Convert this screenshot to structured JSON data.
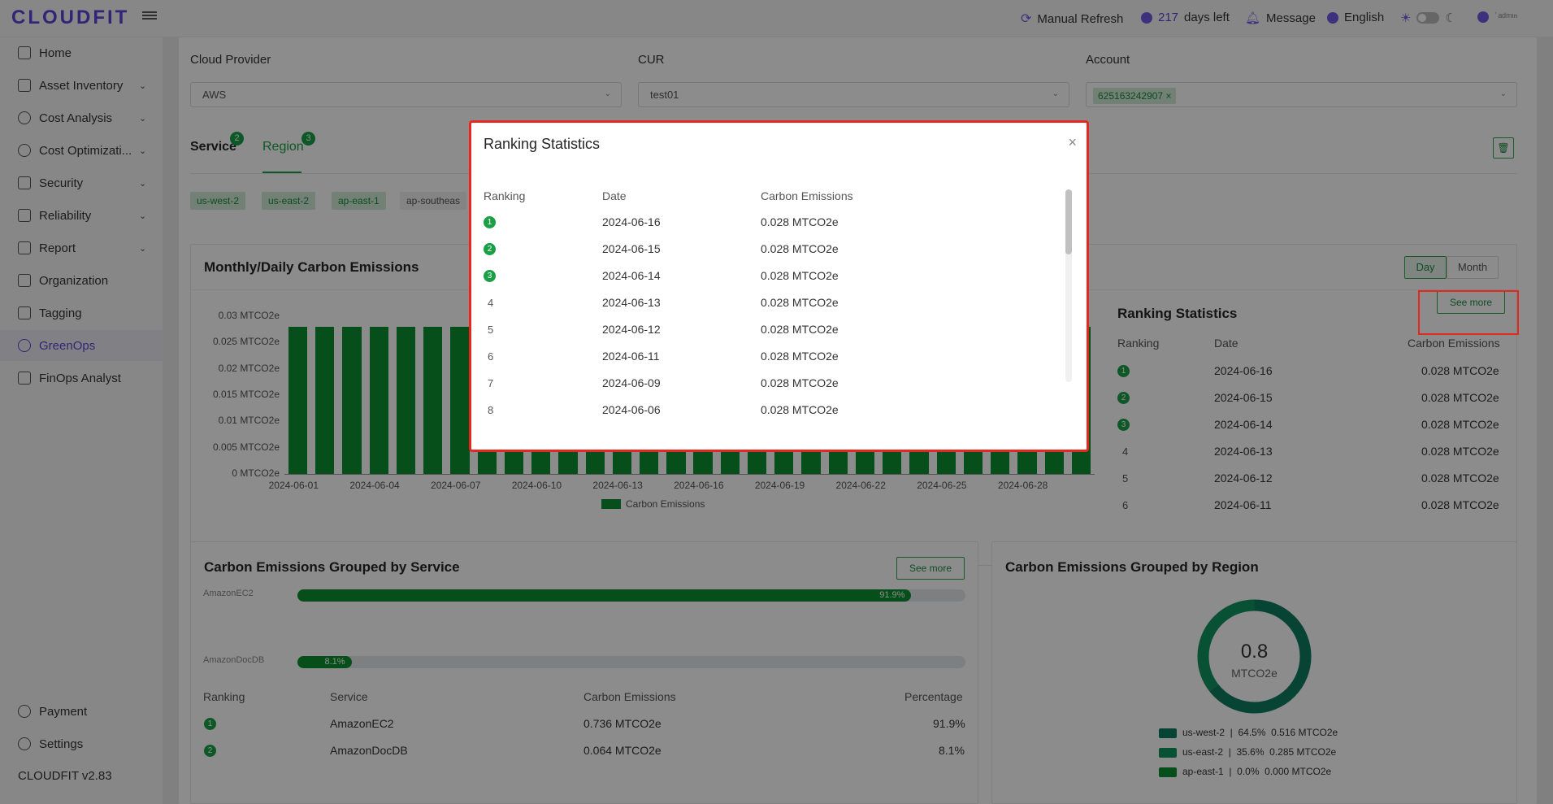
{
  "app": {
    "logo": "CLOUDFIT",
    "version": "CLOUDFIT v2.83"
  },
  "topbar": {
    "refresh": "Manual Refresh",
    "days_num": "217",
    "days_text": "days left",
    "message": "Message",
    "language": "English",
    "user": "˙ᵃᵈᵐᶦⁿ"
  },
  "sidebar": {
    "items": [
      {
        "label": "Home",
        "chev": ""
      },
      {
        "label": "Asset Inventory",
        "chev": "⌄"
      },
      {
        "label": "Cost Analysis",
        "chev": "⌄"
      },
      {
        "label": "Cost Optimizati...",
        "chev": "⌄"
      },
      {
        "label": "Security",
        "chev": "⌄"
      },
      {
        "label": "Reliability",
        "chev": "⌄"
      },
      {
        "label": "Report",
        "chev": "⌄"
      },
      {
        "label": "Organization",
        "chev": ""
      },
      {
        "label": "Tagging",
        "chev": ""
      },
      {
        "label": "GreenOps",
        "chev": ""
      },
      {
        "label": "FinOps Analyst",
        "chev": ""
      }
    ],
    "payment": "Payment",
    "settings": "Settings"
  },
  "filters": {
    "cloud_provider_label": "Cloud Provider",
    "cloud_provider_value": "AWS",
    "cur_label": "CUR",
    "cur_value": "test01",
    "account_label": "Account",
    "account_tag": "625163242907"
  },
  "tabs": {
    "service": "Service",
    "service_count": "2",
    "region": "Region",
    "region_count": "3"
  },
  "region_chips": [
    "us-west-2",
    "us-east-2",
    "ap-east-1",
    "ap-southeas"
  ],
  "emissions_card": {
    "title": "Monthly/Daily Carbon Emissions",
    "day_btn": "Day",
    "month_btn": "Month",
    "legend": "Carbon Emissions"
  },
  "chart_data": {
    "type": "bar",
    "title": "Monthly/Daily Carbon Emissions",
    "categories": [
      "2024-06-01",
      "2024-06-02",
      "2024-06-03",
      "2024-06-04",
      "2024-06-05",
      "2024-06-06",
      "2024-06-07",
      "2024-06-08",
      "2024-06-09",
      "2024-06-10",
      "2024-06-11",
      "2024-06-12",
      "2024-06-13",
      "2024-06-14",
      "2024-06-15",
      "2024-06-16",
      "2024-06-17",
      "2024-06-18",
      "2024-06-19",
      "2024-06-20",
      "2024-06-21",
      "2024-06-22",
      "2024-06-23",
      "2024-06-24",
      "2024-06-25",
      "2024-06-26",
      "2024-06-27",
      "2024-06-28",
      "2024-06-29",
      "2024-06-30"
    ],
    "series": [
      {
        "name": "Carbon Emissions",
        "values": [
          0.028,
          0.028,
          0.028,
          0.028,
          0.028,
          0.028,
          0.028,
          0.028,
          0.028,
          0.028,
          0.028,
          0.028,
          0.028,
          0.028,
          0.028,
          0.028,
          0.028,
          0.028,
          0.028,
          0.028,
          0.028,
          0.028,
          0.028,
          0.028,
          0.028,
          0.028,
          0.028,
          0.028,
          0.028,
          0.028
        ]
      }
    ],
    "yticks": [
      "0 MTCO2e",
      "0.005 MTCO2e",
      "0.01 MTCO2e",
      "0.015 MTCO2e",
      "0.02 MTCO2e",
      "0.025 MTCO2e",
      "0.03 MTCO2e"
    ],
    "xticks": [
      "2024-06-01",
      "2024-06-04",
      "2024-06-07",
      "2024-06-10",
      "2024-06-13",
      "2024-06-16",
      "2024-06-19",
      "2024-06-22",
      "2024-06-25",
      "2024-06-28"
    ],
    "ylim": [
      0,
      0.03
    ],
    "legend_position": "bottom"
  },
  "ranking_panel": {
    "title": "Ranking Statistics",
    "see_more": "See more",
    "headers": [
      "Ranking",
      "Date",
      "Carbon Emissions"
    ],
    "rows": [
      {
        "rank": "1",
        "date": "2024-06-16",
        "value": "0.028 MTCO2e"
      },
      {
        "rank": "2",
        "date": "2024-06-15",
        "value": "0.028 MTCO2e"
      },
      {
        "rank": "3",
        "date": "2024-06-14",
        "value": "0.028 MTCO2e"
      },
      {
        "rank": "4",
        "date": "2024-06-13",
        "value": "0.028 MTCO2e"
      },
      {
        "rank": "5",
        "date": "2024-06-12",
        "value": "0.028 MTCO2e"
      },
      {
        "rank": "6",
        "date": "2024-06-11",
        "value": "0.028 MTCO2e"
      }
    ]
  },
  "service_card": {
    "title": "Carbon Emissions Grouped by Service",
    "see_more": "See more",
    "bars": [
      {
        "name": "AmazonEC2",
        "pct_label": "91.9%",
        "pct": 0.919
      },
      {
        "name": "AmazonDocDB",
        "pct_label": "8.1%",
        "pct": 0.081
      }
    ],
    "headers": [
      "Ranking",
      "Service",
      "Carbon Emissions",
      "Percentage"
    ],
    "rows": [
      {
        "rank": "1",
        "service": "AmazonEC2",
        "value": "0.736 MTCO2e",
        "pct": "91.9%"
      },
      {
        "rank": "2",
        "service": "AmazonDocDB",
        "value": "0.064 MTCO2e",
        "pct": "8.1%"
      }
    ]
  },
  "region_card": {
    "title": "Carbon Emissions Grouped by Region",
    "total": "0.8",
    "unit": "MTCO2e",
    "legend": [
      {
        "text": "us-west-2  |  64.5%  0.516 MTCO2e",
        "share": 0.645
      },
      {
        "text": "us-east-2  |  35.6%  0.285 MTCO2e",
        "share": 0.356
      },
      {
        "text": "ap-east-1  |  0.0%  0.000 MTCO2e",
        "share": 0.0
      }
    ]
  },
  "modal": {
    "title": "Ranking Statistics",
    "close": "×",
    "headers": [
      "Ranking",
      "Date",
      "Carbon Emissions"
    ],
    "rows": [
      {
        "rank": "1",
        "date": "2024-06-16",
        "value": "0.028 MTCO2e"
      },
      {
        "rank": "2",
        "date": "2024-06-15",
        "value": "0.028 MTCO2e"
      },
      {
        "rank": "3",
        "date": "2024-06-14",
        "value": "0.028 MTCO2e"
      },
      {
        "rank": "4",
        "date": "2024-06-13",
        "value": "0.028 MTCO2e"
      },
      {
        "rank": "5",
        "date": "2024-06-12",
        "value": "0.028 MTCO2e"
      },
      {
        "rank": "6",
        "date": "2024-06-11",
        "value": "0.028 MTCO2e"
      },
      {
        "rank": "7",
        "date": "2024-06-09",
        "value": "0.028 MTCO2e"
      },
      {
        "rank": "8",
        "date": "2024-06-06",
        "value": "0.028 MTCO2e"
      }
    ]
  },
  "colors": {
    "accent": "#5b44d8",
    "green": "#0b9131",
    "highlight": "#e5281f"
  }
}
